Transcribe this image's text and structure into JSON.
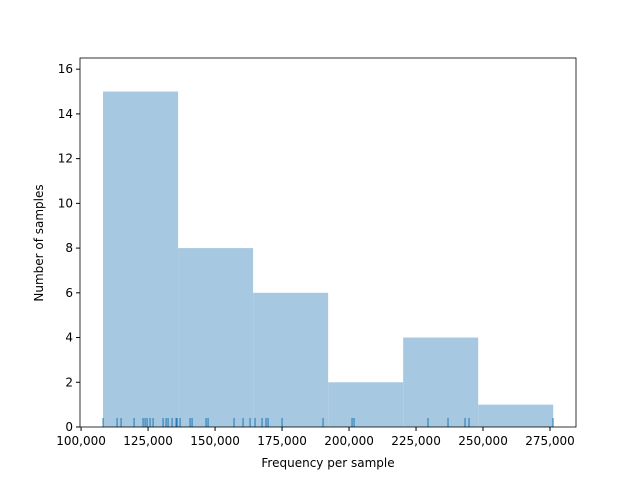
{
  "chart_data": {
    "type": "histogram",
    "x_label": "Frequency per sample",
    "y_label": "Number of samples",
    "bins": [
      108200,
      136200,
      164200,
      192200,
      220200,
      248200,
      276200
    ],
    "values": [
      15,
      8,
      6,
      2,
      4,
      1
    ],
    "color": "#a6c8e0",
    "rug": [
      108209,
      113433,
      114925,
      119776,
      123134,
      123880,
      124627,
      125746,
      126866,
      130597,
      131716,
      132463,
      133955,
      135448,
      135821,
      136940,
      140672,
      141418,
      146642,
      147388,
      157090,
      160448,
      163060,
      164925,
      167537,
      169030,
      169776,
      175000,
      190299,
      201119,
      201866,
      229478,
      236940,
      243284,
      244776,
      276119
    ],
    "rug_color": "#1f77b4",
    "xlim": [
      99600,
      284700
    ],
    "ylim": [
      0,
      16.5
    ],
    "xticks": [
      {
        "value": 100000,
        "label": "100,000"
      },
      {
        "value": 125000,
        "label": "125,000"
      },
      {
        "value": 150000,
        "label": "150,000"
      },
      {
        "value": 175000,
        "label": "175,000"
      },
      {
        "value": 200000,
        "label": "200,000"
      },
      {
        "value": 225000,
        "label": "225,000"
      },
      {
        "value": 250000,
        "label": "250,000"
      },
      {
        "value": 275000,
        "label": "275,000"
      }
    ],
    "yticks": [
      0,
      2,
      4,
      6,
      8,
      10,
      12,
      14,
      16
    ]
  }
}
